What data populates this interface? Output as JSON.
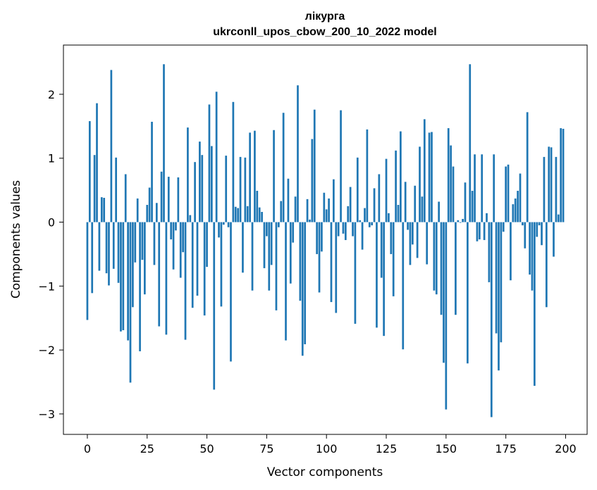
{
  "chart_data": {
    "type": "bar",
    "title": "лікурга",
    "subtitle": "ukrconll_upos_cbow_200_10_2022 model",
    "xlabel": "Vector components",
    "ylabel": "Components values",
    "xlim": [
      -10,
      209
    ],
    "ylim": [
      -3.32,
      2.77
    ],
    "xticks": [
      0,
      25,
      50,
      75,
      100,
      125,
      150,
      175,
      200
    ],
    "yticks": [
      -3,
      -2,
      -1,
      0,
      1,
      2
    ],
    "grid": false,
    "bar_color": "#1f77b4",
    "x": [
      0,
      1,
      2,
      3,
      4,
      5,
      6,
      7,
      8,
      9,
      10,
      11,
      12,
      13,
      14,
      15,
      16,
      17,
      18,
      19,
      20,
      21,
      22,
      23,
      24,
      25,
      26,
      27,
      28,
      29,
      30,
      31,
      32,
      33,
      34,
      35,
      36,
      37,
      38,
      39,
      40,
      41,
      42,
      43,
      44,
      45,
      46,
      47,
      48,
      49,
      50,
      51,
      52,
      53,
      54,
      55,
      56,
      57,
      58,
      59,
      60,
      61,
      62,
      63,
      64,
      65,
      66,
      67,
      68,
      69,
      70,
      71,
      72,
      73,
      74,
      75,
      76,
      77,
      78,
      79,
      80,
      81,
      82,
      83,
      84,
      85,
      86,
      87,
      88,
      89,
      90,
      91,
      92,
      93,
      94,
      95,
      96,
      97,
      98,
      99,
      100,
      101,
      102,
      103,
      104,
      105,
      106,
      107,
      108,
      109,
      110,
      111,
      112,
      113,
      114,
      115,
      116,
      117,
      118,
      119,
      120,
      121,
      122,
      123,
      124,
      125,
      126,
      127,
      128,
      129,
      130,
      131,
      132,
      133,
      134,
      135,
      136,
      137,
      138,
      139,
      140,
      141,
      142,
      143,
      144,
      145,
      146,
      147,
      148,
      149,
      150,
      151,
      152,
      153,
      154,
      155,
      156,
      157,
      158,
      159,
      160,
      161,
      162,
      163,
      164,
      165,
      166,
      167,
      168,
      169,
      170,
      171,
      172,
      173,
      174,
      175,
      176,
      177,
      178,
      179,
      180,
      181,
      182,
      183,
      184,
      185,
      186,
      187,
      188,
      189,
      190,
      191,
      192,
      193,
      194,
      195,
      196,
      197,
      198,
      199
    ],
    "values": [
      -1.53,
      1.58,
      -1.11,
      1.05,
      1.86,
      -0.76,
      0.39,
      0.38,
      -0.8,
      -0.99,
      2.38,
      -0.73,
      1.01,
      -0.95,
      -1.71,
      -1.69,
      0.75,
      -1.85,
      -2.51,
      -1.33,
      -0.63,
      0.37,
      -2.02,
      -0.59,
      -1.13,
      0.27,
      0.54,
      1.57,
      -0.67,
      0.3,
      -1.63,
      0.79,
      2.47,
      -1.76,
      0.71,
      -0.27,
      -0.74,
      -0.13,
      0.7,
      -0.87,
      -0.47,
      -1.84,
      1.48,
      0.11,
      -1.34,
      0.94,
      -1.15,
      1.26,
      1.05,
      -1.46,
      -0.7,
      1.84,
      1.19,
      -2.62,
      2.04,
      -0.24,
      -1.32,
      -0.04,
      1.04,
      -0.08,
      -2.18,
      1.88,
      0.24,
      0.22,
      1.02,
      -0.79,
      1.01,
      0.25,
      1.4,
      -1.07,
      1.43,
      0.49,
      0.23,
      0.16,
      -0.72,
      -0.22,
      -1.07,
      -0.67,
      1.44,
      -1.38,
      -0.08,
      0.33,
      1.71,
      -1.85,
      0.68,
      -0.96,
      -0.32,
      0.4,
      2.14,
      -1.23,
      -2.09,
      -1.91,
      0.36,
      0.04,
      1.3,
      1.76,
      -0.5,
      -1.1,
      -0.46,
      0.46,
      0.2,
      0.37,
      -1.25,
      0.67,
      -1.42,
      -0.22,
      1.75,
      -0.18,
      -0.28,
      0.25,
      0.55,
      -0.22,
      -1.59,
      1.01,
      0.03,
      -0.43,
      0.22,
      1.45,
      -0.08,
      -0.05,
      0.53,
      -1.65,
      0.75,
      -0.87,
      -1.78,
      0.99,
      0.14,
      -0.5,
      -1.16,
      1.12,
      0.27,
      1.42,
      -1.99,
      0.63,
      -0.12,
      -0.67,
      -0.35,
      0.57,
      -0.56,
      1.18,
      0.4,
      1.61,
      -0.66,
      1.4,
      1.41,
      -1.07,
      -1.13,
      0.32,
      -1.45,
      -2.2,
      -2.93,
      1.47,
      1.2,
      0.87,
      -1.45,
      0.03,
      -0.01,
      0.05,
      0.62,
      -2.21,
      2.47,
      0.49,
      1.06,
      -0.3,
      -0.27,
      1.06,
      -0.28,
      0.14,
      -0.94,
      -3.05,
      1.06,
      -1.74,
      -2.32,
      -1.88,
      -0.15,
      0.87,
      0.9,
      -0.91,
      0.28,
      0.37,
      0.49,
      0.76,
      -0.05,
      -0.41,
      1.72,
      -0.82,
      -1.07,
      -2.56,
      -0.23,
      -0.05,
      -0.36,
      1.02,
      -1.33,
      1.18,
      1.17,
      -0.54,
      1.02,
      0.12,
      1.47,
      1.46
    ]
  }
}
